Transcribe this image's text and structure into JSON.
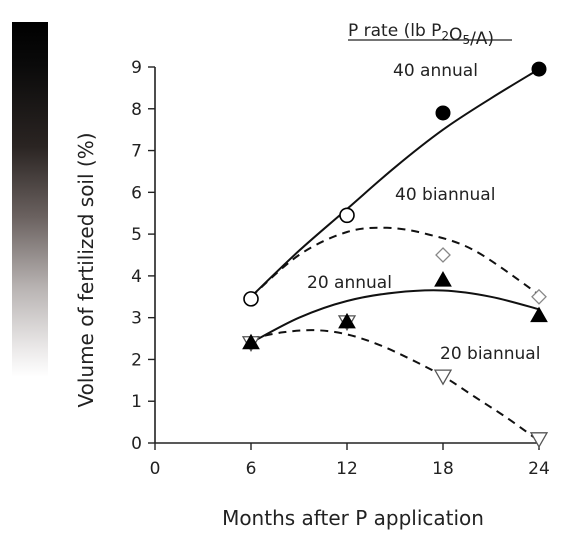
{
  "chart_data": {
    "type": "scatter",
    "title": "",
    "legend_title": "P rate (lb P2O5/A)",
    "xlabel": "Months after P application",
    "ylabel": "Volume of fertilized soil (%)",
    "xlim": [
      0,
      24
    ],
    "ylim": [
      0,
      9
    ],
    "x_ticks": [
      0,
      6,
      12,
      18,
      24
    ],
    "y_ticks": [
      0,
      1,
      2,
      3,
      4,
      5,
      6,
      7,
      8,
      9
    ],
    "grid": false,
    "series": [
      {
        "name": "40 annual",
        "marker": "filled-circle",
        "points": [
          [
            6,
            3.45
          ],
          [
            12,
            5.45
          ],
          [
            18,
            7.9
          ],
          [
            24,
            8.95
          ]
        ],
        "fit": "solid",
        "fit_curve": [
          [
            6,
            3.5
          ],
          [
            9,
            4.6
          ],
          [
            12,
            5.6
          ],
          [
            15,
            6.6
          ],
          [
            18,
            7.5
          ],
          [
            21,
            8.25
          ],
          [
            24,
            8.95
          ]
        ]
      },
      {
        "name": "40 biannual",
        "marker": "open-diamond",
        "points": [
          [
            6,
            3.45
          ],
          [
            12,
            5.45
          ],
          [
            18,
            4.5
          ],
          [
            24,
            3.5
          ]
        ],
        "fit": "dashed",
        "fit_curve": [
          [
            6,
            3.5
          ],
          [
            9,
            4.5
          ],
          [
            12,
            5.05
          ],
          [
            14.5,
            5.15
          ],
          [
            17,
            5.0
          ],
          [
            20,
            4.6
          ],
          [
            24,
            3.55
          ]
        ]
      },
      {
        "name": "20 annual",
        "marker": "filled-triangle",
        "points": [
          [
            6,
            2.4
          ],
          [
            12,
            2.9
          ],
          [
            18,
            3.9
          ],
          [
            24,
            3.05
          ]
        ],
        "fit": "solid",
        "fit_curve": [
          [
            6,
            2.4
          ],
          [
            9,
            3.0
          ],
          [
            12,
            3.4
          ],
          [
            15,
            3.6
          ],
          [
            18,
            3.65
          ],
          [
            21,
            3.5
          ],
          [
            24,
            3.2
          ]
        ]
      },
      {
        "name": "20 biannual",
        "marker": "open-triangle-down",
        "points": [
          [
            6,
            2.4
          ],
          [
            12,
            2.9
          ],
          [
            18,
            1.6
          ],
          [
            24,
            0.1
          ]
        ],
        "fit": "dashed",
        "fit_curve": [
          [
            6,
            2.5
          ],
          [
            8,
            2.65
          ],
          [
            10,
            2.7
          ],
          [
            12,
            2.6
          ],
          [
            14,
            2.35
          ],
          [
            16,
            2.0
          ],
          [
            18,
            1.6
          ],
          [
            20,
            1.1
          ],
          [
            22,
            0.6
          ],
          [
            24,
            0.05
          ]
        ]
      }
    ]
  }
}
